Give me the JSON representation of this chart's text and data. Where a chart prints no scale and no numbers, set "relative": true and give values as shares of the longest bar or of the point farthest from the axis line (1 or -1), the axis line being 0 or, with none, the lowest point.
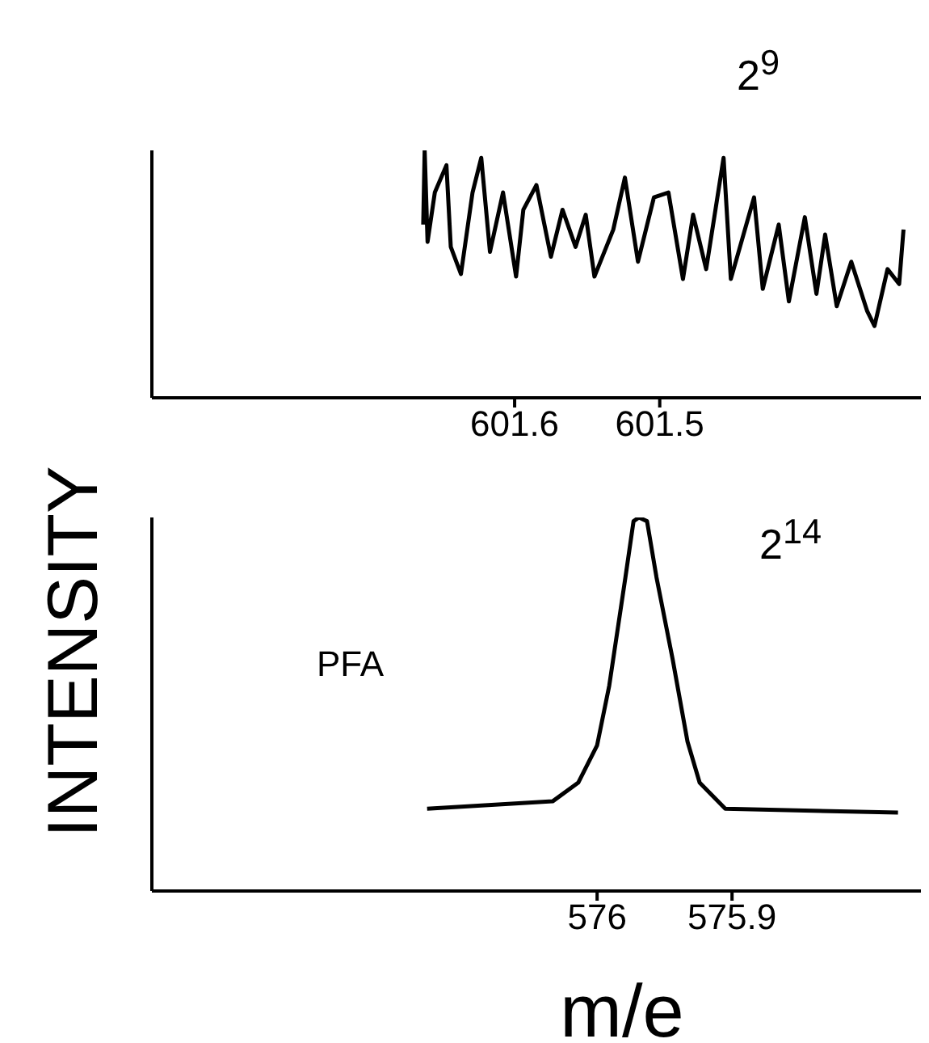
{
  "chart_data": [
    {
      "type": "line",
      "relative": true,
      "ylabel": "INTENSITY",
      "xlim": [
        601.85,
        601.32
      ],
      "xticks": [
        601.6,
        601.5
      ],
      "tick_labels": "x",
      "grid": false,
      "legend": false,
      "marker": "none",
      "annotations": [
        "2$^{9}$"
      ],
      "series": [
        {
          "color": "#000000",
          "x": [
            601.663,
            601.662,
            601.66,
            601.655,
            601.647,
            601.644,
            601.637,
            601.629,
            601.623,
            601.617,
            601.608,
            601.599,
            601.594,
            601.585,
            601.575,
            601.567,
            601.558,
            601.551,
            601.545,
            601.532,
            601.524,
            601.515,
            601.504,
            601.494,
            601.484,
            601.477,
            601.468,
            601.456,
            601.451,
            601.435,
            601.429,
            601.418,
            601.411,
            601.4,
            601.392,
            601.386,
            601.378,
            601.368,
            601.357,
            601.352,
            601.343,
            601.335,
            601.332
          ],
          "values": [
            0.7,
            1.0,
            0.63,
            0.83,
            0.94,
            0.61,
            0.5,
            0.83,
            0.97,
            0.59,
            0.83,
            0.49,
            0.76,
            0.86,
            0.57,
            0.76,
            0.61,
            0.74,
            0.49,
            0.68,
            0.89,
            0.55,
            0.81,
            0.83,
            0.48,
            0.74,
            0.52,
            0.97,
            0.48,
            0.81,
            0.44,
            0.7,
            0.39,
            0.73,
            0.42,
            0.66,
            0.37,
            0.55,
            0.35,
            0.29,
            0.52,
            0.46,
            0.68
          ]
        }
      ]
    },
    {
      "type": "line",
      "relative": true,
      "xlabel": "m/e",
      "xlim": [
        576.33,
        575.76
      ],
      "xticks": [
        576,
        575.9
      ],
      "tick_labels": "x",
      "grid": false,
      "legend": false,
      "marker": "none",
      "annotations": [
        "2$^{14}$",
        "PFA"
      ],
      "series": [
        {
          "color": "#000000",
          "x": [
            576.126,
            576.033,
            576.014,
            576.0,
            575.991,
            575.979,
            575.973,
            575.969,
            575.963,
            575.956,
            575.944,
            575.933,
            575.924,
            575.905,
            575.777
          ],
          "values": [
            0.22,
            0.24,
            0.29,
            0.39,
            0.55,
            0.84,
            0.99,
            1.0,
            0.99,
            0.84,
            0.62,
            0.4,
            0.29,
            0.22,
            0.21
          ]
        }
      ]
    }
  ]
}
